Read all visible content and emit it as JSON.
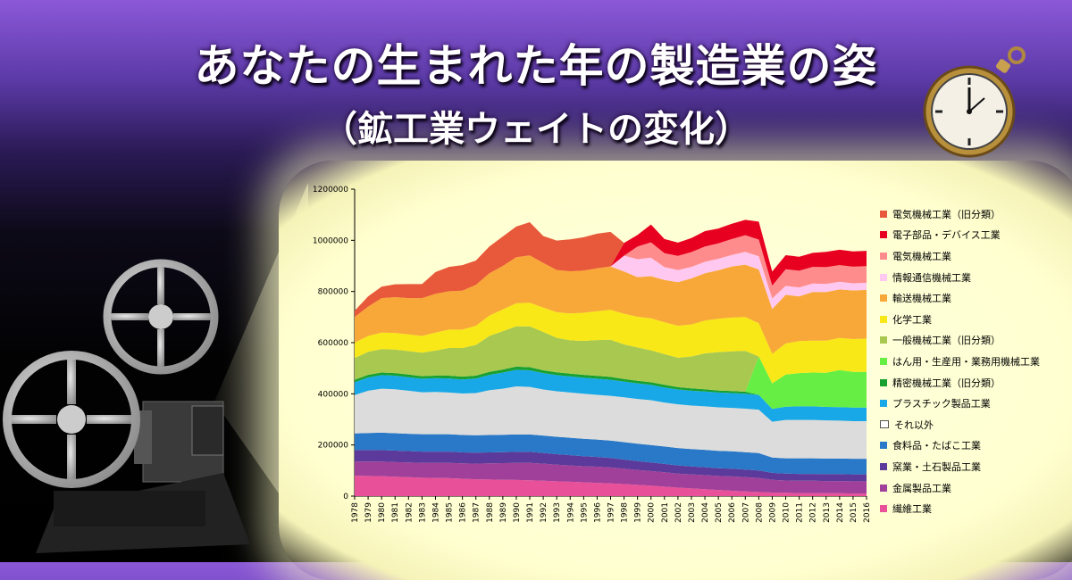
{
  "header": {
    "title": "あなたの生まれた年の製造業の姿",
    "subtitle": "（鉱工業ウェイトの変化）"
  },
  "colors": {
    "background_top": "#8b58d8",
    "background_bottom": "#000000",
    "chart_backdrop": "#ffffd8"
  },
  "icons": [
    "film-projector-icon",
    "pocket-watch-icon"
  ],
  "chart_data": {
    "type": "area",
    "stacked": true,
    "x": [
      1978,
      1979,
      1980,
      1981,
      1982,
      1983,
      1984,
      1985,
      1986,
      1987,
      1988,
      1989,
      1990,
      1991,
      1992,
      1993,
      1994,
      1995,
      1996,
      1997,
      1998,
      1999,
      2000,
      2001,
      2002,
      2003,
      2004,
      2005,
      2006,
      2007,
      2008,
      2009,
      2010,
      2011,
      2012,
      2013,
      2014,
      2015,
      2016
    ],
    "ylim": [
      0,
      1200000
    ],
    "yticks": [
      "0",
      "200000",
      "400000",
      "600000",
      "800000",
      "1000000",
      "1200000"
    ],
    "legend_position": "right",
    "series": [
      {
        "name": "繊維工業",
        "color": "#e8509a",
        "values": [
          80000,
          79000,
          78000,
          76000,
          74000,
          72000,
          71000,
          70000,
          68000,
          66000,
          65000,
          64000,
          63000,
          62000,
          60000,
          58000,
          56000,
          54000,
          52000,
          50000,
          47000,
          44000,
          41000,
          37000,
          33000,
          30000,
          27000,
          24000,
          21000,
          18000,
          16000,
          14000,
          13000,
          12000,
          12000,
          11000,
          11000,
          10000,
          10000
        ]
      },
      {
        "name": "金属製品工業",
        "color": "#a0409a",
        "values": [
          55000,
          56000,
          57000,
          57000,
          58000,
          58000,
          59000,
          60000,
          60000,
          61000,
          63000,
          65000,
          67000,
          68000,
          67000,
          65000,
          64000,
          63000,
          63000,
          62000,
          60000,
          58000,
          57000,
          56000,
          55000,
          55000,
          55000,
          55000,
          56000,
          56000,
          55000,
          50000,
          48000,
          48000,
          48000,
          48000,
          48000,
          48000,
          48000
        ]
      },
      {
        "name": "窯業・土石製品工業",
        "color": "#5b3a9b",
        "values": [
          45000,
          45000,
          45000,
          45000,
          44000,
          44000,
          44000,
          44000,
          43000,
          43000,
          43000,
          43000,
          43000,
          43000,
          42000,
          41000,
          40000,
          39000,
          38000,
          37000,
          36000,
          35000,
          34000,
          33000,
          32000,
          31000,
          31000,
          30000,
          30000,
          30000,
          29000,
          27000,
          27000,
          27000,
          27000,
          27000,
          27000,
          27000,
          27000
        ]
      },
      {
        "name": "食料品・たばこ工業",
        "color": "#2a78c8",
        "values": [
          65000,
          67000,
          68000,
          68000,
          68000,
          68000,
          68000,
          68000,
          68000,
          68000,
          68000,
          68000,
          68000,
          68000,
          68000,
          68000,
          68000,
          68000,
          68000,
          68000,
          68000,
          68000,
          68000,
          68000,
          68000,
          68000,
          68000,
          68000,
          68000,
          68000,
          68000,
          60000,
          60000,
          61000,
          61000,
          61000,
          61000,
          61000,
          61000
        ]
      },
      {
        "name": "それ以外",
        "color": "#dcdcdc",
        "values": [
          150000,
          165000,
          172000,
          172000,
          168000,
          164000,
          165000,
          163000,
          162000,
          165000,
          175000,
          180000,
          188000,
          186000,
          180000,
          178000,
          177000,
          176000,
          175000,
          175000,
          175000,
          175000,
          175000,
          172000,
          171000,
          170000,
          170000,
          170000,
          170000,
          170000,
          170000,
          140000,
          150000,
          150000,
          150000,
          149000,
          148000,
          147000,
          147000
        ]
      },
      {
        "name": "プラスチック製品工業",
        "color": "#18a8e8",
        "values": [
          50000,
          52000,
          53000,
          53000,
          53000,
          53000,
          54000,
          55000,
          55000,
          57000,
          60000,
          63000,
          65000,
          65000,
          64000,
          63000,
          63000,
          63000,
          63000,
          63000,
          62000,
          61000,
          60000,
          59000,
          58000,
          58000,
          58000,
          58000,
          58000,
          58000,
          58000,
          50000,
          52000,
          53000,
          53000,
          53000,
          53000,
          53000,
          53000
        ]
      },
      {
        "name": "精密機械工業（旧分類）",
        "color": "#18a030",
        "values": [
          10000,
          10000,
          10000,
          10000,
          10000,
          10000,
          10000,
          11000,
          11000,
          11000,
          12000,
          12000,
          12000,
          12000,
          11000,
          11000,
          11000,
          11000,
          11000,
          11000,
          10000,
          10000,
          10000,
          10000,
          9000,
          9000,
          9000,
          8000,
          8000,
          8000,
          0,
          0,
          0,
          0,
          0,
          0,
          0,
          0,
          0
        ]
      },
      {
        "name": "はん用・生産用・業務用機械工業",
        "color": "#66ee44",
        "values": [
          0,
          0,
          0,
          0,
          0,
          0,
          0,
          0,
          0,
          0,
          0,
          0,
          0,
          0,
          0,
          0,
          0,
          0,
          0,
          0,
          0,
          0,
          0,
          0,
          0,
          0,
          0,
          0,
          0,
          0,
          150000,
          100000,
          125000,
          130000,
          132000,
          133000,
          145000,
          140000,
          140000
        ]
      },
      {
        "name": "一般機械工業（旧分類）",
        "color": "#a8c850",
        "values": [
          85000,
          90000,
          92000,
          92000,
          92000,
          92000,
          98000,
          108000,
          112000,
          120000,
          140000,
          150000,
          158000,
          160000,
          150000,
          135000,
          130000,
          133000,
          140000,
          145000,
          135000,
          130000,
          125000,
          120000,
          115000,
          125000,
          140000,
          150000,
          155000,
          160000,
          0,
          0,
          0,
          0,
          0,
          0,
          0,
          0,
          0
        ]
      },
      {
        "name": "化学工業",
        "color": "#f8e818",
        "values": [
          60000,
          62000,
          64000,
          65000,
          65000,
          65000,
          70000,
          72000,
          72000,
          75000,
          80000,
          85000,
          90000,
          92000,
          95000,
          100000,
          105000,
          110000,
          113000,
          117000,
          120000,
          120000,
          125000,
          125000,
          125000,
          125000,
          128000,
          130000,
          132000,
          132000,
          130000,
          115000,
          122000,
          125000,
          125000,
          126000,
          125000,
          128000,
          130000
        ]
      },
      {
        "name": "輸送機械工業",
        "color": "#f8a838",
        "values": [
          100000,
          115000,
          135000,
          140000,
          142000,
          148000,
          152000,
          150000,
          152000,
          160000,
          165000,
          170000,
          180000,
          185000,
          175000,
          165000,
          165000,
          165000,
          168000,
          170000,
          165000,
          155000,
          165000,
          165000,
          170000,
          180000,
          185000,
          190000,
          200000,
          205000,
          210000,
          175000,
          190000,
          175000,
          190000,
          190000,
          190000,
          190000,
          190000
        ]
      },
      {
        "name": "情報通信機械工業",
        "color": "#ffc8f0",
        "values": [
          0,
          0,
          0,
          0,
          0,
          0,
          0,
          0,
          0,
          0,
          0,
          0,
          0,
          0,
          0,
          0,
          0,
          0,
          0,
          0,
          62000,
          70000,
          72000,
          50000,
          48000,
          45000,
          45000,
          45000,
          45000,
          50000,
          52000,
          42000,
          35000,
          35000,
          33000,
          32000,
          30000,
          28000,
          28000
        ]
      },
      {
        "name": "電気機械工業",
        "color": "#ff8c8c",
        "values": [
          0,
          0,
          0,
          0,
          0,
          0,
          0,
          0,
          0,
          0,
          0,
          0,
          0,
          0,
          0,
          0,
          0,
          0,
          0,
          0,
          0,
          50000,
          60000,
          55000,
          55000,
          58000,
          60000,
          60000,
          62000,
          65000,
          65000,
          50000,
          65000,
          65000,
          65000,
          65000,
          65000,
          65000,
          65000
        ]
      },
      {
        "name": "電子部品・デバイス工業",
        "color": "#e80020",
        "values": [
          0,
          0,
          0,
          0,
          0,
          0,
          0,
          0,
          0,
          0,
          0,
          0,
          0,
          0,
          0,
          0,
          0,
          0,
          0,
          0,
          50000,
          45000,
          70000,
          55000,
          52000,
          55000,
          60000,
          58000,
          60000,
          60000,
          70000,
          55000,
          55000,
          55000,
          55000,
          60000,
          60000,
          60000,
          60000
        ]
      },
      {
        "name": "電気機械工業（旧分類）",
        "color": "#e8583a",
        "values": [
          25000,
          40000,
          45000,
          50000,
          55000,
          55000,
          85000,
          95000,
          100000,
          95000,
          105000,
          115000,
          120000,
          130000,
          105000,
          115000,
          125000,
          130000,
          135000,
          135000,
          0,
          0,
          0,
          0,
          0,
          0,
          0,
          0,
          0,
          0,
          0,
          0,
          0,
          0,
          0,
          0,
          0,
          0,
          0
        ]
      }
    ]
  }
}
